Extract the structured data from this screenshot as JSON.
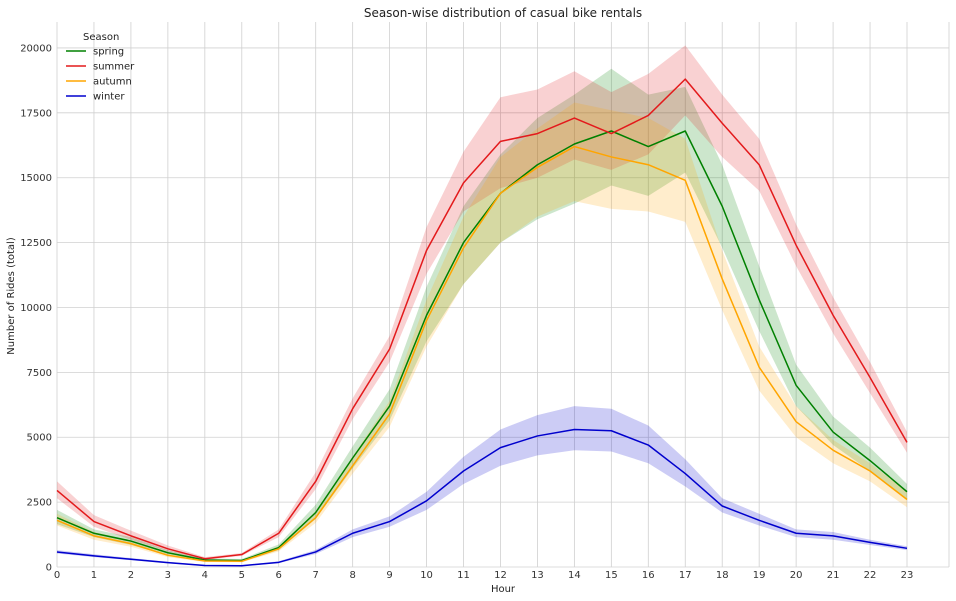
{
  "chart_data": {
    "type": "line",
    "title": "Season-wise distribution of casual bike rentals",
    "xlabel": "Hour",
    "ylabel": "Number of Rides (total)",
    "xlim": [
      0,
      23
    ],
    "ylim": [
      0,
      21000
    ],
    "x": [
      0,
      1,
      2,
      3,
      4,
      5,
      6,
      7,
      8,
      9,
      10,
      11,
      12,
      13,
      14,
      15,
      16,
      17,
      18,
      19,
      20,
      21,
      22,
      23
    ],
    "x_ticks": [
      "0",
      "1",
      "2",
      "3",
      "4",
      "5",
      "6",
      "7",
      "8",
      "9",
      "10",
      "11",
      "12",
      "13",
      "14",
      "15",
      "16",
      "17",
      "18",
      "19",
      "20",
      "21",
      "22",
      "23"
    ],
    "y_ticks": [
      0,
      2500,
      5000,
      7500,
      10000,
      12500,
      15000,
      17500,
      20000
    ],
    "grid": true,
    "legend_title": "Season",
    "legend_position": "top-left",
    "series": [
      {
        "name": "spring",
        "color": "#008000",
        "values": [
          1900,
          1300,
          1000,
          550,
          270,
          250,
          750,
          2100,
          4200,
          6200,
          9700,
          12500,
          14400,
          15500,
          16300,
          16800,
          16200,
          16800,
          13900,
          10300,
          7000,
          5200,
          4100,
          2900
        ],
        "lower": [
          1650,
          1150,
          850,
          450,
          220,
          200,
          650,
          1850,
          3800,
          5650,
          8700,
          10900,
          12500,
          13400,
          14000,
          14700,
          14300,
          15200,
          12300,
          9100,
          6200,
          4700,
          3700,
          2600
        ],
        "upper": [
          2200,
          1450,
          1150,
          650,
          330,
          310,
          870,
          2400,
          4650,
          6850,
          10800,
          13900,
          15900,
          17300,
          18200,
          19200,
          18200,
          18500,
          15500,
          11600,
          7800,
          5800,
          4600,
          3200
        ]
      },
      {
        "name": "summer",
        "color": "#e31a1c",
        "values": [
          2950,
          1750,
          1200,
          700,
          320,
          480,
          1300,
          3300,
          6100,
          8400,
          12200,
          14800,
          16400,
          16700,
          17300,
          16700,
          17400,
          18800,
          17100,
          15500,
          12400,
          9700,
          7300,
          4800
        ],
        "lower": [
          2650,
          1550,
          1050,
          600,
          280,
          430,
          1150,
          3000,
          5700,
          7900,
          11300,
          13700,
          14600,
          15000,
          15700,
          15300,
          15900,
          17400,
          15800,
          14500,
          11600,
          9000,
          6700,
          4400
        ],
        "upper": [
          3300,
          2000,
          1400,
          830,
          380,
          540,
          1450,
          3650,
          6500,
          8900,
          13100,
          16000,
          18100,
          18400,
          19100,
          18300,
          19000,
          20100,
          18200,
          16500,
          13200,
          10400,
          7900,
          5200
        ]
      },
      {
        "name": "autumn",
        "color": "#ffa500",
        "values": [
          1800,
          1200,
          900,
          450,
          230,
          220,
          700,
          1900,
          3900,
          5900,
          9500,
          12300,
          14400,
          15400,
          16200,
          15800,
          15500,
          14900,
          11100,
          7700,
          5600,
          4500,
          3700,
          2600
        ],
        "lower": [
          1600,
          1050,
          780,
          380,
          190,
          180,
          600,
          1700,
          3600,
          5400,
          8500,
          10900,
          12500,
          13500,
          14100,
          13800,
          13700,
          13300,
          9900,
          6800,
          5000,
          4000,
          3300,
          2300
        ],
        "upper": [
          2050,
          1350,
          1030,
          520,
          270,
          260,
          800,
          2150,
          4250,
          6400,
          10300,
          13500,
          15800,
          16900,
          17900,
          17600,
          17300,
          16500,
          12200,
          8500,
          6200,
          4900,
          4000,
          2900
        ]
      },
      {
        "name": "winter",
        "color": "#0000cd",
        "values": [
          580,
          430,
          300,
          170,
          60,
          50,
          180,
          580,
          1300,
          1750,
          2550,
          3700,
          4600,
          5050,
          5300,
          5250,
          4700,
          3600,
          2350,
          1800,
          1300,
          1200,
          950,
          720
        ],
        "lower": [
          520,
          380,
          260,
          140,
          45,
          35,
          150,
          500,
          1150,
          1550,
          2200,
          3200,
          3900,
          4300,
          4500,
          4450,
          4000,
          3100,
          2100,
          1600,
          1150,
          1050,
          850,
          650
        ],
        "upper": [
          650,
          490,
          345,
          200,
          80,
          70,
          220,
          660,
          1450,
          1950,
          2900,
          4250,
          5300,
          5850,
          6200,
          6100,
          5450,
          4150,
          2650,
          2050,
          1450,
          1350,
          1050,
          800
        ]
      }
    ]
  }
}
